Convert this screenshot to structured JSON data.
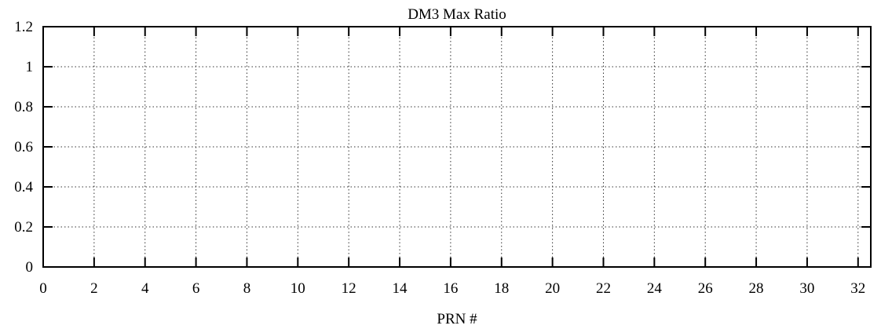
{
  "chart_data": {
    "type": "bar",
    "title": "DM3 Max Ratio",
    "xlabel": "PRN #",
    "ylabel": "",
    "xlim": [
      0,
      32.5
    ],
    "ylim": [
      0,
      1.2
    ],
    "x_ticks": [
      0,
      2,
      4,
      6,
      8,
      10,
      12,
      14,
      16,
      18,
      20,
      22,
      24,
      26,
      28,
      30,
      32
    ],
    "x_tick_labels": [
      "0",
      "2",
      "4",
      "6",
      "8",
      "10",
      "12",
      "14",
      "16",
      "18",
      "20",
      "22",
      "24",
      "26",
      "28",
      "30",
      "32"
    ],
    "y_ticks": [
      0,
      0.2,
      0.4,
      0.6,
      0.8,
      1,
      1.2
    ],
    "y_tick_labels": [
      "0",
      "0.2",
      "0.4",
      "0.6",
      "0.8",
      "1",
      "1.2"
    ],
    "grid": true,
    "categories": [],
    "values": []
  }
}
